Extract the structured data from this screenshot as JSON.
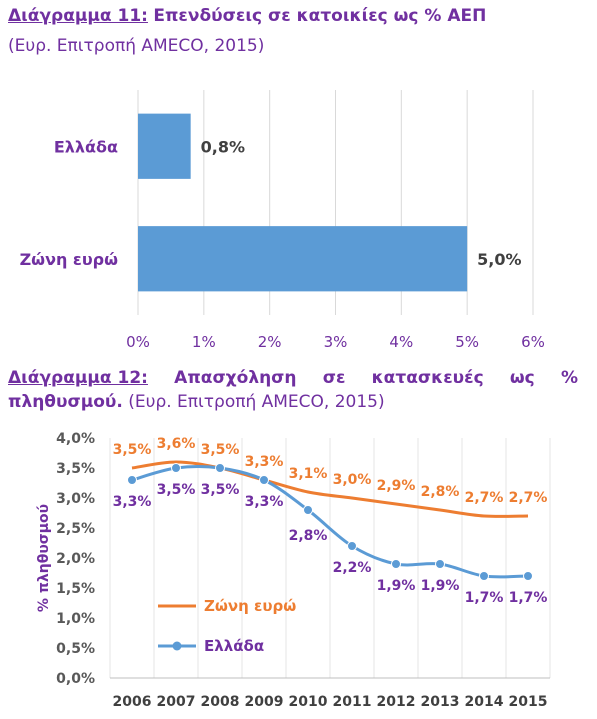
{
  "chart1": {
    "caption_number": "Διάγραμμα 11:",
    "caption_title": "Επενδύσεις σε κατοικίες ως % ΑΕΠ",
    "source": "(Ευρ. Επιτροπή AMECO, 2015)"
  },
  "chart2": {
    "caption_number": "Διάγραμμα 12:",
    "caption_w1": "Απασχόληση",
    "caption_w2": "σε",
    "caption_w3": "κατασκευές",
    "caption_w4": "ως",
    "caption_w5": "%",
    "caption_line2_bold": "πληθυσμού.",
    "source": "(Ευρ. Επιτροπή AMECO, 2015)"
  },
  "colors": {
    "purple": "#7030a0",
    "blue": "#5b9bd5",
    "orange": "#ed7d31",
    "grid": "#d9d9d9"
  },
  "chart_data": [
    {
      "type": "bar",
      "orientation": "horizontal",
      "categories": [
        "Ελλάδα",
        "Ζώνη ευρώ"
      ],
      "values": [
        0.8,
        5.0
      ],
      "value_labels": [
        "0,8%",
        "5,0%"
      ],
      "xlim": [
        0,
        6
      ],
      "xticks": [
        0,
        1,
        2,
        3,
        4,
        5,
        6
      ],
      "xtick_labels": [
        "0%",
        "1%",
        "2%",
        "3%",
        "4%",
        "5%",
        "6%"
      ],
      "grid": "vertical"
    },
    {
      "type": "line",
      "x": [
        2006,
        2007,
        2008,
        2009,
        2010,
        2011,
        2012,
        2013,
        2014,
        2015
      ],
      "ylabel": "% πληθυσμού",
      "ylim": [
        0,
        4
      ],
      "yticks": [
        0,
        0.5,
        1,
        1.5,
        2,
        2.5,
        3,
        3.5,
        4
      ],
      "ytick_labels": [
        "0,0%",
        "0,5%",
        "1,0%",
        "1,5%",
        "2,0%",
        "2,5%",
        "3,0%",
        "3,5%",
        "4,0%"
      ],
      "grid": "vertical",
      "legend": "inside, lower-left",
      "series": [
        {
          "name": "Ζώνη ευρώ",
          "color": "#ed7d31",
          "markers": false,
          "values": [
            3.5,
            3.6,
            3.5,
            3.3,
            3.1,
            3.0,
            2.9,
            2.8,
            2.7,
            2.7
          ],
          "labels": [
            "3,5%",
            "3,6%",
            "3,5%",
            "3,3%",
            "3,1%",
            "3,0%",
            "2,9%",
            "2,8%",
            "2,7%",
            "2,7%"
          ]
        },
        {
          "name": "Ελλάδα",
          "color": "#5b9bd5",
          "markers": true,
          "values": [
            3.3,
            3.5,
            3.5,
            3.3,
            2.8,
            2.2,
            1.9,
            1.9,
            1.7,
            1.7
          ],
          "labels": [
            "3,3%",
            "3,5%",
            "3,5%",
            "3,3%",
            "2,8%",
            "2,2%",
            "1,9%",
            "1,9%",
            "1,7%",
            "1,7%"
          ]
        }
      ]
    }
  ]
}
